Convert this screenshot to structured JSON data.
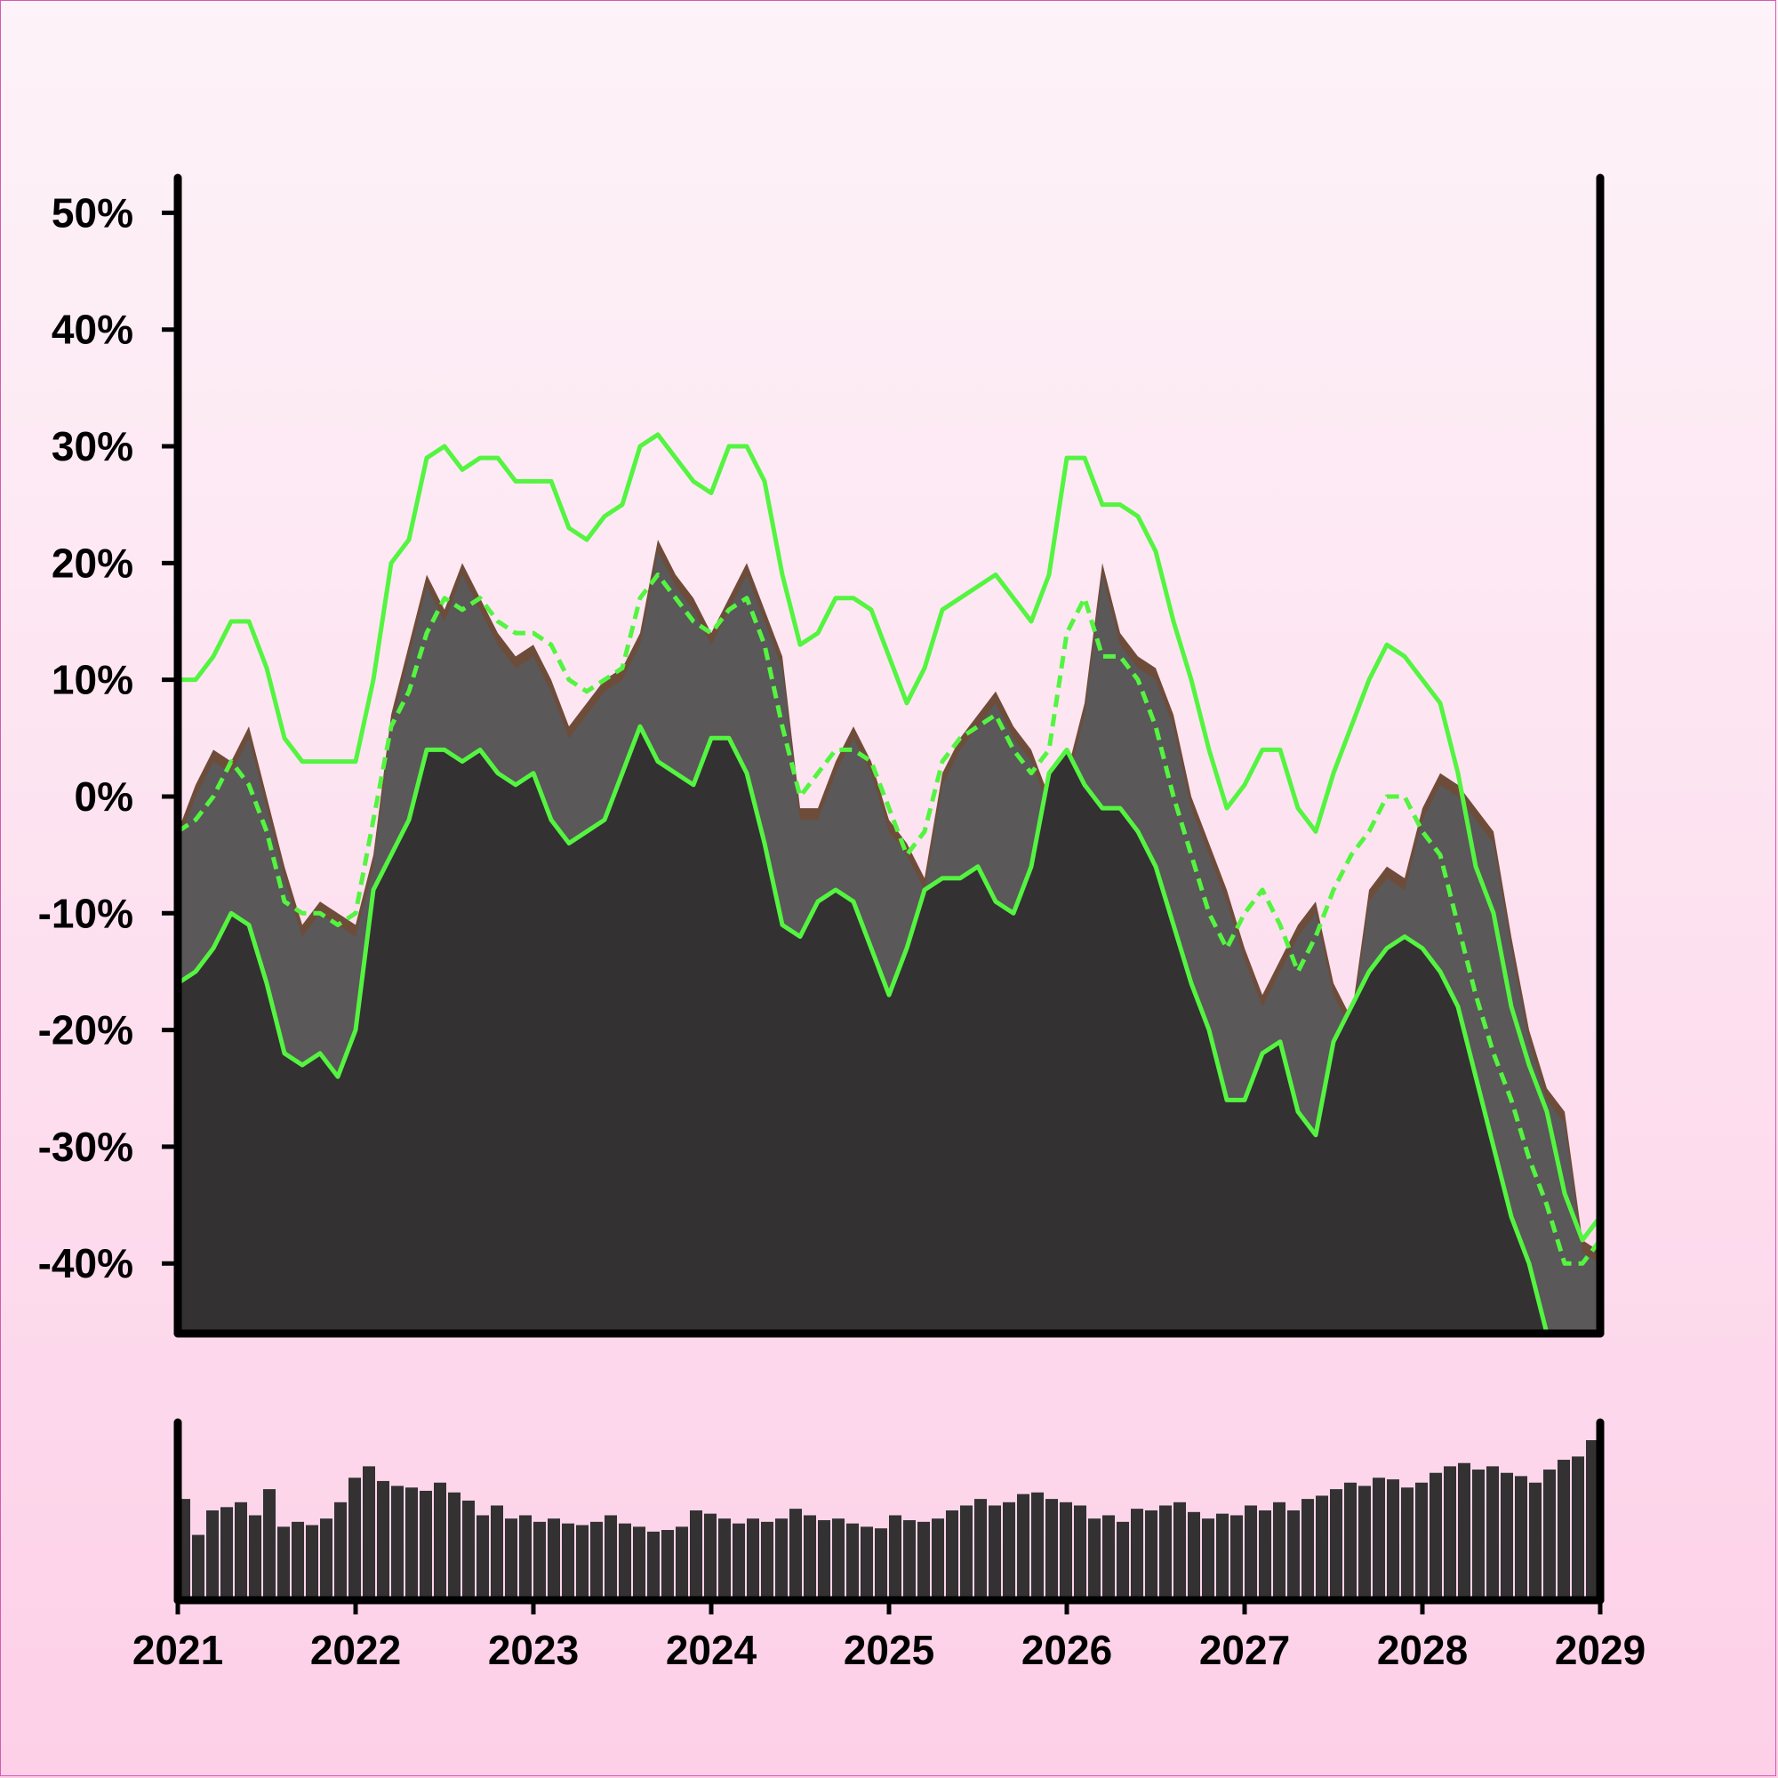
{
  "chart_data": [
    {
      "type": "area",
      "x_start": "2021",
      "x_end": "2029",
      "xlim": [
        "2021",
        "2029"
      ],
      "ylim": [
        -46,
        53
      ],
      "y_ticks": [
        {
          "value": 50,
          "label": "50%"
        },
        {
          "value": 40,
          "label": "40%"
        },
        {
          "value": 30,
          "label": "30%"
        },
        {
          "value": 20,
          "label": "20%"
        },
        {
          "value": 10,
          "label": "10%"
        },
        {
          "value": 0,
          "label": "0%"
        },
        {
          "value": -10,
          "label": "-10%"
        },
        {
          "value": -20,
          "label": "-20%"
        },
        {
          "value": -30,
          "label": "-30%"
        },
        {
          "value": -40,
          "label": "-40%"
        }
      ],
      "grid": false,
      "fill_color": "#333132",
      "band_color": "#5a5858",
      "spike_color": "#6e4c3a",
      "line_color": "#54f441",
      "series": [
        {
          "role": "price",
          "x": [
            2021.0,
            2021.1,
            2021.2,
            2021.3,
            2021.4,
            2021.5,
            2021.6,
            2021.7,
            2021.8,
            2021.9,
            2022.0,
            2022.1,
            2022.2,
            2022.3,
            2022.4,
            2022.5,
            2022.6,
            2022.7,
            2022.8,
            2022.9,
            2023.0,
            2023.1,
            2023.2,
            2023.3,
            2023.4,
            2023.5,
            2023.6,
            2023.7,
            2023.8,
            2023.9,
            2024.0,
            2024.1,
            2024.2,
            2024.3,
            2024.4,
            2024.5,
            2024.6,
            2024.7,
            2024.8,
            2024.9,
            2025.0,
            2025.1,
            2025.2,
            2025.3,
            2025.4,
            2025.5,
            2025.6,
            2025.7,
            2025.8,
            2025.9,
            2026.0,
            2026.1,
            2026.2,
            2026.3,
            2026.4,
            2026.5,
            2026.6,
            2026.7,
            2026.8,
            2026.9,
            2027.0,
            2027.1,
            2027.2,
            2027.3,
            2027.4,
            2027.5,
            2027.6,
            2027.7,
            2027.8,
            2027.9,
            2028.0,
            2028.1,
            2028.2,
            2028.3,
            2028.4,
            2028.5,
            2028.6,
            2028.7,
            2028.8,
            2028.9,
            2029.0
          ],
          "y": [
            -3,
            1,
            4,
            3,
            6,
            0,
            -6,
            -11,
            -9,
            -10,
            -11,
            -5,
            7,
            13,
            19,
            16,
            20,
            17,
            14,
            12,
            13,
            10,
            6,
            8,
            10,
            11,
            14,
            22,
            19,
            17,
            14,
            17,
            20,
            16,
            12,
            -1,
            -1,
            3,
            6,
            3,
            -2,
            -4,
            -7,
            2,
            5,
            7,
            9,
            6,
            4,
            0,
            2,
            8,
            20,
            14,
            12,
            11,
            7,
            0,
            -4,
            -8,
            -13,
            -17,
            -14,
            -11,
            -9,
            -16,
            -19,
            -8,
            -6,
            -7,
            -1,
            2,
            1,
            -1,
            -3,
            -12,
            -20,
            -25,
            -27,
            -38,
            -39
          ]
        },
        {
          "role": "ma-upper",
          "x": [
            2021.0,
            2021.1,
            2021.2,
            2021.3,
            2021.4,
            2021.5,
            2021.6,
            2021.7,
            2021.8,
            2021.9,
            2022.0,
            2022.1,
            2022.2,
            2022.3,
            2022.4,
            2022.5,
            2022.6,
            2022.7,
            2022.8,
            2022.9,
            2023.0,
            2023.1,
            2023.2,
            2023.3,
            2023.4,
            2023.5,
            2023.6,
            2023.7,
            2023.8,
            2023.9,
            2024.0,
            2024.1,
            2024.2,
            2024.3,
            2024.4,
            2024.5,
            2024.6,
            2024.7,
            2024.8,
            2024.9,
            2025.0,
            2025.1,
            2025.2,
            2025.3,
            2025.4,
            2025.5,
            2025.6,
            2025.7,
            2025.8,
            2025.9,
            2026.0,
            2026.1,
            2026.2,
            2026.3,
            2026.4,
            2026.5,
            2026.6,
            2026.7,
            2026.8,
            2026.9,
            2027.0,
            2027.1,
            2027.2,
            2027.3,
            2027.4,
            2027.5,
            2027.6,
            2027.7,
            2027.8,
            2027.9,
            2028.0,
            2028.1,
            2028.2,
            2028.3,
            2028.4,
            2028.5,
            2028.6,
            2028.7,
            2028.8,
            2028.9,
            2029.0
          ],
          "y": [
            10,
            10,
            12,
            15,
            15,
            11,
            5,
            3,
            3,
            3,
            3,
            10,
            20,
            22,
            29,
            30,
            28,
            29,
            29,
            27,
            27,
            27,
            23,
            22,
            24,
            25,
            30,
            31,
            29,
            27,
            26,
            30,
            30,
            27,
            19,
            13,
            14,
            17,
            17,
            16,
            12,
            8,
            11,
            16,
            17,
            18,
            19,
            17,
            15,
            19,
            29,
            29,
            25,
            25,
            24,
            21,
            15,
            10,
            4,
            -1,
            1,
            4,
            4,
            -1,
            -3,
            2,
            6,
            10,
            13,
            12,
            10,
            8,
            2,
            -6,
            -10,
            -18,
            -23,
            -27,
            -34,
            -38,
            -36
          ]
        },
        {
          "role": "ma-mid",
          "x": [
            2021.0,
            2021.1,
            2021.2,
            2021.3,
            2021.4,
            2021.5,
            2021.6,
            2021.7,
            2021.8,
            2021.9,
            2022.0,
            2022.1,
            2022.2,
            2022.3,
            2022.4,
            2022.5,
            2022.6,
            2022.7,
            2022.8,
            2022.9,
            2023.0,
            2023.1,
            2023.2,
            2023.3,
            2023.4,
            2023.5,
            2023.6,
            2023.7,
            2023.8,
            2023.9,
            2024.0,
            2024.1,
            2024.2,
            2024.3,
            2024.4,
            2024.5,
            2024.6,
            2024.7,
            2024.8,
            2024.9,
            2025.0,
            2025.1,
            2025.2,
            2025.3,
            2025.4,
            2025.5,
            2025.6,
            2025.7,
            2025.8,
            2025.9,
            2026.0,
            2026.1,
            2026.2,
            2026.3,
            2026.4,
            2026.5,
            2026.6,
            2026.7,
            2026.8,
            2026.9,
            2027.0,
            2027.1,
            2027.2,
            2027.3,
            2027.4,
            2027.5,
            2027.6,
            2027.7,
            2027.8,
            2027.9,
            2028.0,
            2028.1,
            2028.2,
            2028.3,
            2028.4,
            2028.5,
            2028.6,
            2028.7,
            2028.8,
            2028.9,
            2029.0
          ],
          "y": [
            -3,
            -2,
            0,
            3,
            1,
            -3,
            -9,
            -10,
            -10,
            -11,
            -10,
            -2,
            6,
            9,
            14,
            17,
            16,
            17,
            15,
            14,
            14,
            13,
            10,
            9,
            10,
            11,
            17,
            19,
            17,
            15,
            14,
            16,
            17,
            13,
            6,
            0,
            2,
            4,
            4,
            3,
            -1,
            -5,
            -3,
            3,
            5,
            6,
            7,
            4,
            2,
            4,
            14,
            17,
            12,
            12,
            10,
            6,
            0,
            -5,
            -10,
            -13,
            -10,
            -8,
            -11,
            -15,
            -12,
            -8,
            -5,
            -3,
            0,
            0,
            -3,
            -5,
            -11,
            -17,
            -22,
            -26,
            -31,
            -35,
            -40,
            -40,
            -38
          ]
        },
        {
          "role": "ma-lower",
          "x": [
            2021.0,
            2021.1,
            2021.2,
            2021.3,
            2021.4,
            2021.5,
            2021.6,
            2021.7,
            2021.8,
            2021.9,
            2022.0,
            2022.1,
            2022.2,
            2022.3,
            2022.4,
            2022.5,
            2022.6,
            2022.7,
            2022.8,
            2022.9,
            2023.0,
            2023.1,
            2023.2,
            2023.3,
            2023.4,
            2023.5,
            2023.6,
            2023.7,
            2023.8,
            2023.9,
            2024.0,
            2024.1,
            2024.2,
            2024.3,
            2024.4,
            2024.5,
            2024.6,
            2024.7,
            2024.8,
            2024.9,
            2025.0,
            2025.1,
            2025.2,
            2025.3,
            2025.4,
            2025.5,
            2025.6,
            2025.7,
            2025.8,
            2025.9,
            2026.0,
            2026.1,
            2026.2,
            2026.3,
            2026.4,
            2026.5,
            2026.6,
            2026.7,
            2026.8,
            2026.9,
            2027.0,
            2027.1,
            2027.2,
            2027.3,
            2027.4,
            2027.5,
            2027.6,
            2027.7,
            2027.8,
            2027.9,
            2028.0,
            2028.1,
            2028.2,
            2028.3,
            2028.4,
            2028.5,
            2028.6,
            2028.7,
            2028.8,
            2028.9,
            2029.0
          ],
          "y": [
            -16,
            -15,
            -13,
            -10,
            -11,
            -16,
            -22,
            -23,
            -22,
            -24,
            -20,
            -8,
            -5,
            -2,
            4,
            4,
            3,
            4,
            2,
            1,
            2,
            -2,
            -4,
            -3,
            -2,
            2,
            6,
            3,
            2,
            1,
            5,
            5,
            2,
            -4,
            -11,
            -12,
            -9,
            -8,
            -9,
            -13,
            -17,
            -13,
            -8,
            -7,
            -7,
            -6,
            -9,
            -10,
            -6,
            2,
            4,
            1,
            -1,
            -1,
            -3,
            -6,
            -11,
            -16,
            -20,
            -26,
            -26,
            -22,
            -21,
            -27,
            -29,
            -21,
            -18,
            -15,
            -13,
            -12,
            -13,
            -15,
            -18,
            -24,
            -30,
            -36,
            -40,
            -46,
            -52,
            -52,
            -50
          ]
        }
      ]
    },
    {
      "type": "bar",
      "role": "volume",
      "xlim": [
        "2021",
        "2029"
      ],
      "values": [
        62,
        40,
        55,
        57,
        60,
        52,
        68,
        45,
        48,
        46,
        50,
        60,
        75,
        82,
        73,
        70,
        69,
        67,
        72,
        66,
        61,
        52,
        58,
        50,
        52,
        48,
        50,
        47,
        46,
        48,
        52,
        47,
        45,
        42,
        43,
        45,
        55,
        53,
        50,
        47,
        50,
        48,
        50,
        56,
        52,
        49,
        50,
        47,
        45,
        44,
        52,
        49,
        48,
        50,
        55,
        58,
        62,
        58,
        60,
        65,
        66,
        62,
        60,
        58,
        50,
        52,
        48,
        56,
        55,
        58,
        60,
        54,
        50,
        53,
        52,
        58,
        55,
        60,
        55,
        62,
        64,
        68,
        72,
        70,
        75,
        74,
        69,
        72,
        78,
        82,
        84,
        80,
        82,
        78,
        76,
        72,
        80,
        86,
        88,
        98
      ]
    },
    {
      "x_ticks": [
        "2021",
        "2022",
        "2023",
        "2024",
        "2025",
        "2026",
        "2027",
        "2028",
        "2029"
      ]
    }
  ]
}
